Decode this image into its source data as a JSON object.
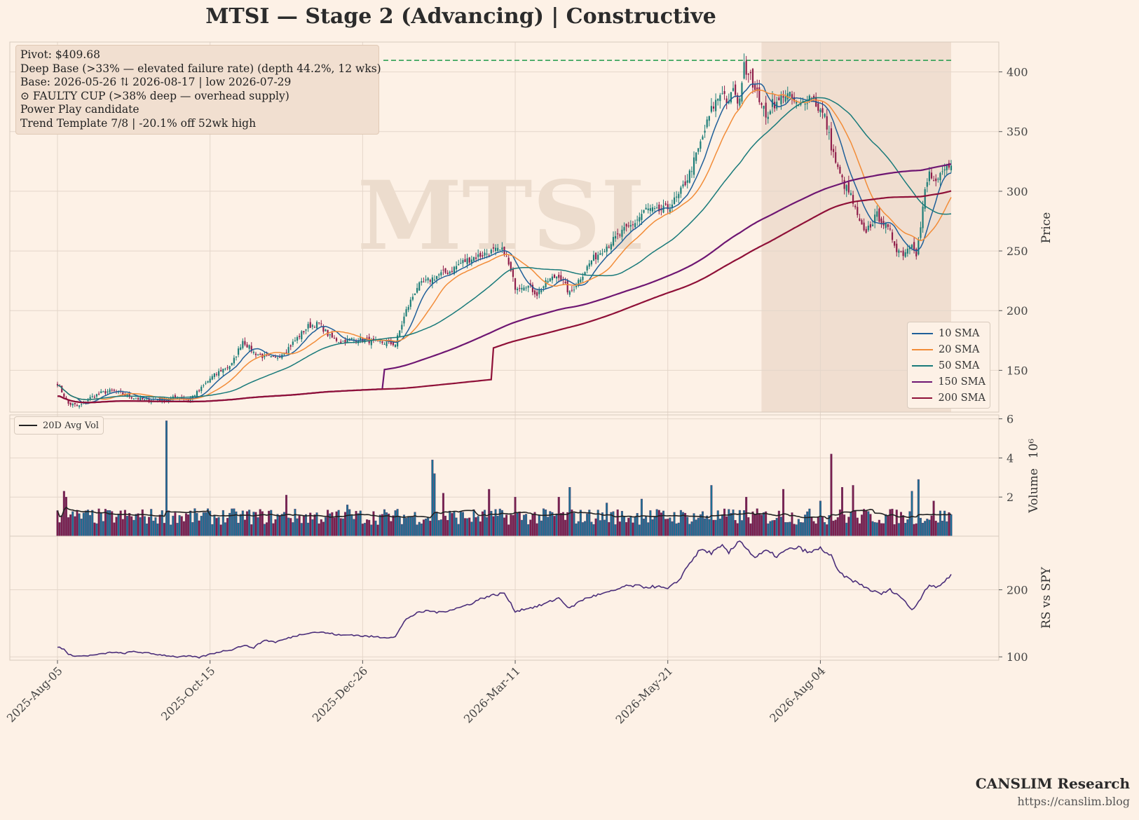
{
  "header": {
    "title": "MTSI  —  Stage 2 (Advancing)  |  Constructive"
  },
  "info": {
    "lines": [
      "Pivot: $409.68",
      "Deep Base (>33% — elevated failure rate)  (depth 44.2%, 12 wks)",
      "Base: 2026-05-26 ⇅ 2026-08-17  |  low 2026-07-29",
      "⊙ FAULTY CUP (>38% deep — overhead supply)",
      "Power Play candidate",
      "Trend Template 7/8  |  -20.1% off 52wk high"
    ]
  },
  "branding": {
    "name": "CANSLIM Research",
    "url": "https://canslim.blog"
  },
  "colors": {
    "background": "#fdf1e6",
    "up_candle": "#1c7d77",
    "down_candle": "#8f1d4a",
    "pivot_line": "#1e9a4a",
    "base_shade": "#e9d5c6",
    "rs_line": "#4b2e7a",
    "avg_vol": "#222222"
  },
  "chart_data": [
    {
      "type": "candlestick",
      "panel": "price",
      "watermark": "MTSI",
      "ylabel": "Price",
      "ylim": [
        115,
        425
      ],
      "yticks": [
        150,
        200,
        250,
        300,
        350,
        400
      ],
      "grid": true,
      "x_tick_labels": [
        "2025-Aug-05",
        "2025-Oct-15",
        "2025-Dec-26",
        "2026-Mar-11",
        "2026-May-21",
        "2026-Aug-04"
      ],
      "pivot": 409.68,
      "base_window": {
        "start": "2026-05-26",
        "end": "2026-08-17",
        "low_date": "2026-07-29"
      },
      "legend_position": "lower-right",
      "close_anchors": [
        [
          0,
          139
        ],
        [
          5,
          122
        ],
        [
          10,
          120
        ],
        [
          15,
          127
        ],
        [
          20,
          131
        ],
        [
          25,
          133
        ],
        [
          30,
          130
        ],
        [
          35,
          127
        ],
        [
          40,
          125
        ],
        [
          45,
          126
        ],
        [
          50,
          125
        ],
        [
          55,
          128
        ],
        [
          60,
          125
        ],
        [
          65,
          133
        ],
        [
          70,
          143
        ],
        [
          75,
          150
        ],
        [
          80,
          155
        ],
        [
          85,
          175
        ],
        [
          90,
          165
        ],
        [
          95,
          161
        ],
        [
          100,
          160
        ],
        [
          105,
          167
        ],
        [
          110,
          177
        ],
        [
          115,
          187
        ],
        [
          120,
          189
        ],
        [
          125,
          178
        ],
        [
          130,
          174
        ],
        [
          135,
          176
        ],
        [
          140,
          176
        ],
        [
          145,
          174
        ],
        [
          150,
          173
        ],
        [
          155,
          172
        ],
        [
          160,
          200
        ],
        [
          165,
          220
        ],
        [
          170,
          225
        ],
        [
          175,
          230
        ],
        [
          180,
          233
        ],
        [
          185,
          240
        ],
        [
          190,
          244
        ],
        [
          195,
          247
        ],
        [
          200,
          250
        ],
        [
          205,
          250
        ],
        [
          210,
          220
        ],
        [
          215,
          222
        ],
        [
          220,
          214
        ],
        [
          225,
          225
        ],
        [
          230,
          230
        ],
        [
          235,
          214
        ],
        [
          240,
          228
        ],
        [
          245,
          242
        ],
        [
          250,
          251
        ],
        [
          255,
          259
        ],
        [
          260,
          267
        ],
        [
          265,
          274
        ],
        [
          270,
          285
        ],
        [
          275,
          283
        ],
        [
          280,
          286
        ],
        [
          285,
          296
        ],
        [
          290,
          315
        ],
        [
          295,
          340
        ],
        [
          300,
          368
        ],
        [
          305,
          385
        ],
        [
          308,
          372
        ],
        [
          310,
          388
        ],
        [
          312,
          370
        ],
        [
          315,
          404
        ],
        [
          318,
          400
        ],
        [
          320,
          383
        ],
        [
          323,
          375
        ],
        [
          325,
          360
        ],
        [
          328,
          376
        ],
        [
          330,
          372
        ],
        [
          333,
          382
        ],
        [
          336,
          379
        ],
        [
          340,
          370
        ],
        [
          343,
          377
        ],
        [
          346,
          380
        ],
        [
          349,
          370
        ],
        [
          352,
          362
        ],
        [
          355,
          338
        ],
        [
          358,
          318
        ],
        [
          361,
          305
        ],
        [
          364,
          296
        ],
        [
          367,
          278
        ],
        [
          370,
          265
        ],
        [
          373,
          272
        ],
        [
          376,
          280
        ],
        [
          379,
          273
        ],
        [
          382,
          265
        ],
        [
          385,
          252
        ],
        [
          388,
          248
        ],
        [
          390,
          252
        ],
        [
          392,
          258
        ],
        [
          394,
          248
        ],
        [
          396,
          270
        ],
        [
          398,
          300
        ],
        [
          400,
          315
        ],
        [
          403,
          305
        ],
        [
          406,
          315
        ],
        [
          410,
          325
        ]
      ],
      "series": [
        {
          "name": "10 SMA",
          "color": "#1f5f99"
        },
        {
          "name": "20 SMA",
          "color": "#f28c38"
        },
        {
          "name": "50 SMA",
          "color": "#197a7a"
        },
        {
          "name": "150 SMA",
          "color": "#6e1672"
        },
        {
          "name": "200 SMA",
          "color": "#8f1038"
        }
      ]
    },
    {
      "type": "bar",
      "panel": "volume",
      "ylabel": "Volume",
      "scale_label": "10⁶",
      "ylim": [
        0,
        6.2
      ],
      "yticks": [
        2,
        4,
        6
      ],
      "base_volume": 1.05,
      "spikes": [
        [
          3,
          2.3
        ],
        [
          4,
          2.0
        ],
        [
          6,
          1.1
        ],
        [
          50,
          5.9
        ],
        [
          54,
          1.2
        ],
        [
          105,
          2.1
        ],
        [
          133,
          1.6
        ],
        [
          172,
          3.9
        ],
        [
          173,
          3.2
        ],
        [
          177,
          2.2
        ],
        [
          198,
          2.4
        ],
        [
          210,
          2.0
        ],
        [
          230,
          2.0
        ],
        [
          235,
          2.5
        ],
        [
          252,
          1.7
        ],
        [
          268,
          1.9
        ],
        [
          300,
          2.6
        ],
        [
          316,
          2.0
        ],
        [
          333,
          2.4
        ],
        [
          350,
          1.8
        ],
        [
          355,
          4.2
        ],
        [
          360,
          2.5
        ],
        [
          365,
          2.6
        ],
        [
          392,
          2.3
        ],
        [
          395,
          2.9
        ],
        [
          402,
          1.8
        ]
      ],
      "series": [
        {
          "name": "20D Avg Vol",
          "color": "#222222"
        }
      ]
    },
    {
      "type": "line",
      "panel": "relative-strength",
      "ylabel": "RS vs SPY",
      "ylim": [
        95,
        280
      ],
      "yticks": [
        100,
        200
      ],
      "anchors": [
        [
          0,
          115
        ],
        [
          3,
          112
        ],
        [
          5,
          103
        ],
        [
          10,
          101
        ],
        [
          15,
          102
        ],
        [
          20,
          104
        ],
        [
          25,
          107
        ],
        [
          30,
          105
        ],
        [
          35,
          108
        ],
        [
          40,
          106
        ],
        [
          45,
          104
        ],
        [
          50,
          102
        ],
        [
          55,
          100
        ],
        [
          60,
          101
        ],
        [
          65,
          99
        ],
        [
          70,
          104
        ],
        [
          75,
          108
        ],
        [
          80,
          111
        ],
        [
          85,
          117
        ],
        [
          90,
          114
        ],
        [
          95,
          125
        ],
        [
          100,
          122
        ],
        [
          105,
          127
        ],
        [
          110,
          132
        ],
        [
          115,
          136
        ],
        [
          120,
          137
        ],
        [
          125,
          135
        ],
        [
          130,
          132
        ],
        [
          135,
          133
        ],
        [
          140,
          131
        ],
        [
          145,
          130
        ],
        [
          150,
          129
        ],
        [
          155,
          130
        ],
        [
          160,
          157
        ],
        [
          165,
          165
        ],
        [
          170,
          169
        ],
        [
          175,
          166
        ],
        [
          180,
          170
        ],
        [
          185,
          174
        ],
        [
          190,
          180
        ],
        [
          195,
          188
        ],
        [
          200,
          192
        ],
        [
          205,
          195
        ],
        [
          210,
          168
        ],
        [
          215,
          172
        ],
        [
          220,
          175
        ],
        [
          225,
          181
        ],
        [
          230,
          188
        ],
        [
          235,
          172
        ],
        [
          240,
          184
        ],
        [
          245,
          190
        ],
        [
          250,
          194
        ],
        [
          255,
          198
        ],
        [
          260,
          205
        ],
        [
          265,
          206
        ],
        [
          270,
          204
        ],
        [
          275,
          205
        ],
        [
          280,
          201
        ],
        [
          285,
          214
        ],
        [
          290,
          240
        ],
        [
          295,
          260
        ],
        [
          300,
          255
        ],
        [
          305,
          265
        ],
        [
          308,
          255
        ],
        [
          310,
          262
        ],
        [
          313,
          275
        ],
        [
          316,
          262
        ],
        [
          320,
          248
        ],
        [
          325,
          258
        ],
        [
          330,
          250
        ],
        [
          335,
          260
        ],
        [
          340,
          263
        ],
        [
          345,
          255
        ],
        [
          350,
          262
        ],
        [
          355,
          250
        ],
        [
          358,
          228
        ],
        [
          362,
          218
        ],
        [
          366,
          212
        ],
        [
          370,
          205
        ],
        [
          374,
          198
        ],
        [
          378,
          194
        ],
        [
          382,
          200
        ],
        [
          386,
          192
        ],
        [
          390,
          178
        ],
        [
          392,
          170
        ],
        [
          395,
          182
        ],
        [
          398,
          200
        ],
        [
          400,
          207
        ],
        [
          403,
          203
        ],
        [
          406,
          210
        ],
        [
          410,
          222
        ]
      ]
    }
  ]
}
